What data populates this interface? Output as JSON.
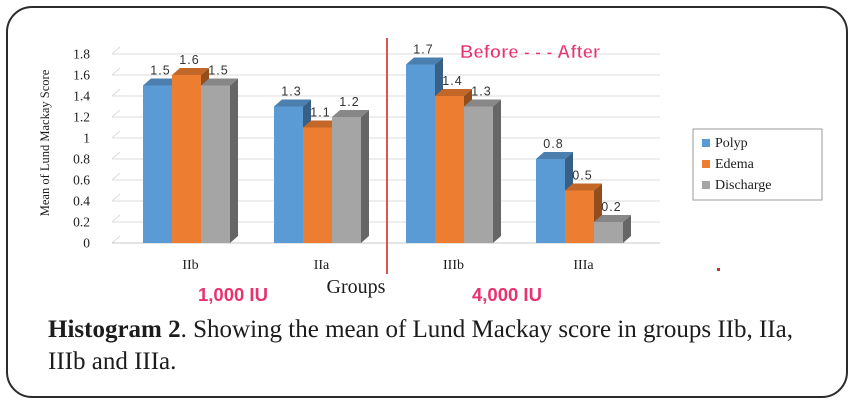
{
  "chart_data": {
    "type": "bar",
    "categories": [
      "IIb",
      "IIa",
      "IIIb",
      "IIIa"
    ],
    "series": [
      {
        "name": "Polyp",
        "values": [
          1.5,
          1.3,
          1.7,
          0.8
        ],
        "color": "#5b9bd5"
      },
      {
        "name": "Edema",
        "values": [
          1.6,
          1.1,
          1.4,
          0.5
        ],
        "color": "#ed7d31"
      },
      {
        "name": "Discharge",
        "values": [
          1.5,
          1.2,
          1.3,
          0.2
        ],
        "color": "#a5a5a5"
      }
    ],
    "data_labels": [
      [
        "1.5",
        "1.6",
        "1.5"
      ],
      [
        "1.3",
        "1.1",
        "1.2"
      ],
      [
        "1.7",
        "1.4",
        "1.3"
      ],
      [
        "0.8",
        "0.5",
        "0.2"
      ]
    ],
    "ylim": [
      0,
      1.8
    ],
    "yticks": [
      "0",
      "0.2",
      "0.4",
      "0.6",
      "0.8",
      "1",
      "1.2",
      "1.4",
      "1.6",
      "1.8"
    ],
    "ylabel": "Mean of Lund Mackay Score",
    "xlabel": "Groups",
    "legend_position": "right",
    "annotations": {
      "before_after": "Before - - - After",
      "dose_left": "1,000 IU",
      "dose_right": "4,000 IU"
    },
    "annotation_color": "#e8336f",
    "divider_color": "#d62a2a"
  },
  "caption": {
    "label": "Histogram 2",
    "text": ". Showing the mean of Lund Mackay score in groups IIb, IIa, IIIb and IIIa."
  }
}
